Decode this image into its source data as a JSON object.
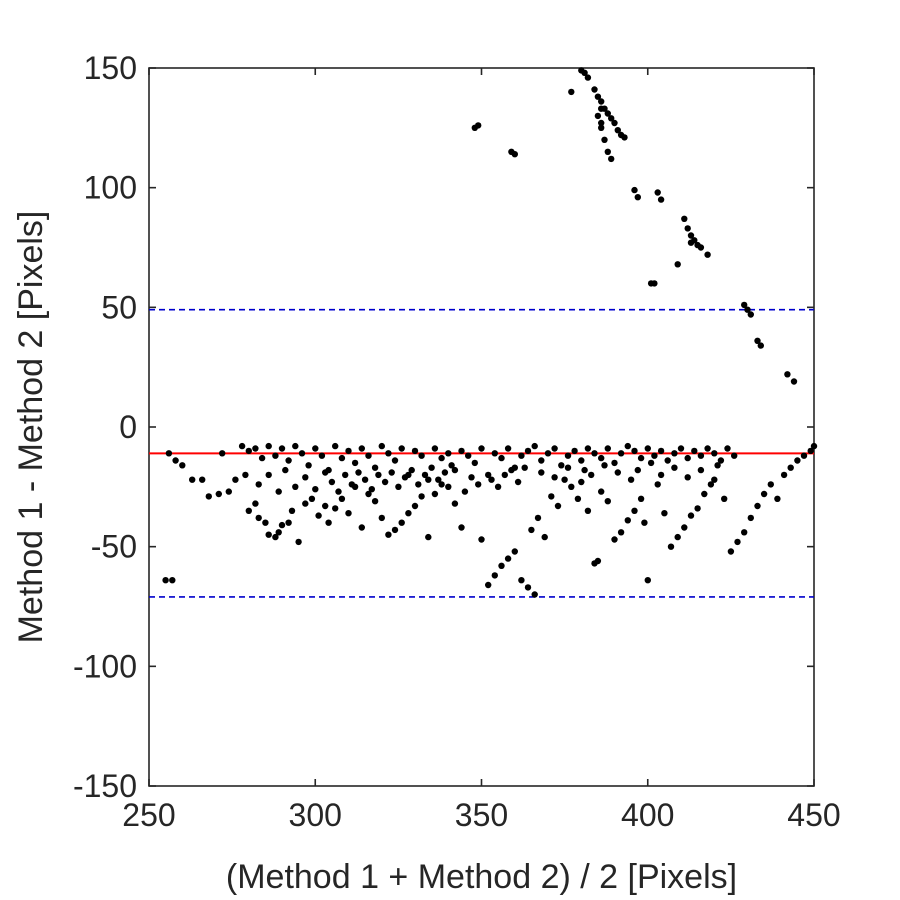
{
  "chart_data": {
    "type": "scatter",
    "title": "",
    "xlabel": "(Method 1 + Method 2) / 2 [Pixels]",
    "ylabel": "Method 1 - Method 2 [Pixels]",
    "xlim": [
      250,
      450
    ],
    "ylim": [
      -150,
      150
    ],
    "xticks": [
      250,
      300,
      350,
      400,
      450
    ],
    "yticks": [
      -150,
      -100,
      -50,
      0,
      50,
      100,
      150
    ],
    "xtick_labels": [
      "250",
      "300",
      "350",
      "400",
      "450"
    ],
    "ytick_labels": [
      "-150",
      "-100",
      "-50",
      "0",
      "50",
      "100",
      "150"
    ],
    "grid": false,
    "legend": "none",
    "reference_lines": [
      {
        "kind": "mean",
        "y": -11,
        "color": "#ff0000",
        "style": "solid"
      },
      {
        "kind": "upper-limit",
        "y": 49,
        "color": "#0000cc",
        "style": "dashed"
      },
      {
        "kind": "lower-limit",
        "y": -71,
        "color": "#0000cc",
        "style": "dashed"
      }
    ],
    "series": [
      {
        "color": "#000000",
        "points": [
          [
            255,
            -64
          ],
          [
            257,
            -64
          ],
          [
            256,
            -11
          ],
          [
            258,
            -14
          ],
          [
            260,
            -16
          ],
          [
            263,
            -22
          ],
          [
            266,
            -22
          ],
          [
            268,
            -29
          ],
          [
            271,
            -28
          ],
          [
            274,
            -27
          ],
          [
            272,
            -11
          ],
          [
            276,
            -22
          ],
          [
            279,
            -20
          ],
          [
            280,
            -35
          ],
          [
            282,
            -32
          ],
          [
            283,
            -38
          ],
          [
            285,
            -40
          ],
          [
            286,
            -45
          ],
          [
            288,
            -46
          ],
          [
            289,
            -44
          ],
          [
            290,
            -41
          ],
          [
            292,
            -40
          ],
          [
            293,
            -35
          ],
          [
            295,
            -48
          ],
          [
            297,
            -32
          ],
          [
            299,
            -30
          ],
          [
            301,
            -37
          ],
          [
            303,
            -33
          ],
          [
            304,
            -40
          ],
          [
            306,
            -34
          ],
          [
            308,
            -30
          ],
          [
            310,
            -36
          ],
          [
            312,
            -25
          ],
          [
            314,
            -42
          ],
          [
            316,
            -28
          ],
          [
            318,
            -31
          ],
          [
            320,
            -38
          ],
          [
            322,
            -45
          ],
          [
            324,
            -43
          ],
          [
            326,
            -40
          ],
          [
            328,
            -36
          ],
          [
            330,
            -33
          ],
          [
            332,
            -29
          ],
          [
            334,
            -46
          ],
          [
            336,
            -28
          ],
          [
            338,
            -24
          ],
          [
            340,
            -25
          ],
          [
            342,
            -32
          ],
          [
            344,
            -42
          ],
          [
            345,
            -27
          ],
          [
            347,
            -21
          ],
          [
            349,
            -24
          ],
          [
            350,
            -47
          ],
          [
            352,
            -66
          ],
          [
            354,
            -62
          ],
          [
            356,
            -58
          ],
          [
            358,
            -55
          ],
          [
            360,
            -52
          ],
          [
            362,
            -64
          ],
          [
            364,
            -67
          ],
          [
            366,
            -70
          ],
          [
            365,
            -43
          ],
          [
            367,
            -38
          ],
          [
            369,
            -46
          ],
          [
            371,
            -29
          ],
          [
            373,
            -33
          ],
          [
            375,
            -22
          ],
          [
            377,
            -25
          ],
          [
            379,
            -30
          ],
          [
            381,
            -18
          ],
          [
            382,
            -35
          ],
          [
            384,
            -57
          ],
          [
            385,
            -56
          ],
          [
            386,
            -27
          ],
          [
            388,
            -31
          ],
          [
            390,
            -47
          ],
          [
            392,
            -44
          ],
          [
            394,
            -39
          ],
          [
            396,
            -35
          ],
          [
            398,
            -30
          ],
          [
            399,
            -40
          ],
          [
            400,
            -64
          ],
          [
            403,
            -24
          ],
          [
            405,
            -36
          ],
          [
            407,
            -50
          ],
          [
            409,
            -46
          ],
          [
            411,
            -42
          ],
          [
            413,
            -37
          ],
          [
            415,
            -34
          ],
          [
            417,
            -28
          ],
          [
            420,
            -22
          ],
          [
            423,
            -30
          ],
          [
            425,
            -52
          ],
          [
            427,
            -48
          ],
          [
            429,
            -44
          ],
          [
            431,
            -38
          ],
          [
            433,
            -33
          ],
          [
            435,
            -28
          ],
          [
            437,
            -24
          ],
          [
            439,
            -30
          ],
          [
            441,
            -20
          ],
          [
            443,
            -17
          ],
          [
            445,
            -14
          ],
          [
            447,
            -12
          ],
          [
            449,
            -10
          ],
          [
            450,
            -8
          ],
          [
            278,
            -8
          ],
          [
            280,
            -10
          ],
          [
            282,
            -9
          ],
          [
            284,
            -13
          ],
          [
            286,
            -8
          ],
          [
            288,
            -12
          ],
          [
            290,
            -9
          ],
          [
            292,
            -14
          ],
          [
            294,
            -8
          ],
          [
            296,
            -11
          ],
          [
            298,
            -16
          ],
          [
            300,
            -9
          ],
          [
            302,
            -12
          ],
          [
            304,
            -18
          ],
          [
            306,
            -8
          ],
          [
            308,
            -13
          ],
          [
            310,
            -10
          ],
          [
            312,
            -15
          ],
          [
            314,
            -9
          ],
          [
            316,
            -12
          ],
          [
            318,
            -17
          ],
          [
            320,
            -8
          ],
          [
            322,
            -11
          ],
          [
            324,
            -14
          ],
          [
            326,
            -9
          ],
          [
            328,
            -20
          ],
          [
            330,
            -10
          ],
          [
            332,
            -12
          ],
          [
            334,
            -22
          ],
          [
            336,
            -9
          ],
          [
            338,
            -13
          ],
          [
            340,
            -11
          ],
          [
            342,
            -18
          ],
          [
            344,
            -10
          ],
          [
            346,
            -12
          ],
          [
            348,
            -15
          ],
          [
            350,
            -9
          ],
          [
            352,
            -20
          ],
          [
            354,
            -11
          ],
          [
            356,
            -13
          ],
          [
            358,
            -9
          ],
          [
            360,
            -17
          ],
          [
            362,
            -12
          ],
          [
            364,
            -10
          ],
          [
            366,
            -8
          ],
          [
            368,
            -14
          ],
          [
            370,
            -11
          ],
          [
            372,
            -9
          ],
          [
            374,
            -16
          ],
          [
            376,
            -12
          ],
          [
            378,
            -10
          ],
          [
            380,
            -14
          ],
          [
            382,
            -9
          ],
          [
            384,
            -11
          ],
          [
            386,
            -13
          ],
          [
            388,
            -9
          ],
          [
            390,
            -15
          ],
          [
            392,
            -11
          ],
          [
            394,
            -8
          ],
          [
            396,
            -10
          ],
          [
            398,
            -13
          ],
          [
            400,
            -9
          ],
          [
            402,
            -12
          ],
          [
            404,
            -10
          ],
          [
            406,
            -14
          ],
          [
            408,
            -11
          ],
          [
            410,
            -9
          ],
          [
            412,
            -13
          ],
          [
            414,
            -10
          ],
          [
            416,
            -12
          ],
          [
            418,
            -9
          ],
          [
            420,
            -11
          ],
          [
            422,
            -14
          ],
          [
            424,
            -9
          ],
          [
            426,
            -12
          ],
          [
            283,
            -24
          ],
          [
            286,
            -20
          ],
          [
            289,
            -27
          ],
          [
            291,
            -18
          ],
          [
            294,
            -25
          ],
          [
            297,
            -21
          ],
          [
            300,
            -26
          ],
          [
            303,
            -19
          ],
          [
            305,
            -23
          ],
          [
            307,
            -27
          ],
          [
            309,
            -20
          ],
          [
            311,
            -24
          ],
          [
            313,
            -19
          ],
          [
            315,
            -22
          ],
          [
            317,
            -26
          ],
          [
            319,
            -20
          ],
          [
            321,
            -23
          ],
          [
            323,
            -19
          ],
          [
            325,
            -25
          ],
          [
            327,
            -21
          ],
          [
            329,
            -18
          ],
          [
            331,
            -24
          ],
          [
            333,
            -20
          ],
          [
            335,
            -17
          ],
          [
            337,
            -22
          ],
          [
            339,
            -19
          ],
          [
            341,
            -16
          ],
          [
            353,
            -22
          ],
          [
            355,
            -25
          ],
          [
            357,
            -20
          ],
          [
            359,
            -18
          ],
          [
            361,
            -23
          ],
          [
            363,
            -17
          ],
          [
            368,
            -19
          ],
          [
            372,
            -21
          ],
          [
            376,
            -17
          ],
          [
            380,
            -23
          ],
          [
            383,
            -20
          ],
          [
            387,
            -16
          ],
          [
            391,
            -19
          ],
          [
            395,
            -22
          ],
          [
            397,
            -18
          ],
          [
            401,
            -15
          ],
          [
            404,
            -20
          ],
          [
            408,
            -17
          ],
          [
            412,
            -21
          ],
          [
            416,
            -18
          ],
          [
            419,
            -24
          ],
          [
            421,
            -16
          ],
          [
            348,
            125
          ],
          [
            349,
            126
          ],
          [
            359,
            115
          ],
          [
            360,
            114
          ],
          [
            377,
            140
          ],
          [
            380,
            149
          ],
          [
            381,
            148
          ],
          [
            382,
            146
          ],
          [
            384,
            141
          ],
          [
            385,
            138
          ],
          [
            386,
            136
          ],
          [
            386,
            133
          ],
          [
            387,
            133
          ],
          [
            388,
            131
          ],
          [
            389,
            129
          ],
          [
            390,
            127
          ],
          [
            391,
            124
          ],
          [
            392,
            122
          ],
          [
            393,
            121
          ],
          [
            385,
            130
          ],
          [
            386,
            127
          ],
          [
            386,
            125
          ],
          [
            387,
            120
          ],
          [
            388,
            115
          ],
          [
            389,
            112
          ],
          [
            396,
            99
          ],
          [
            397,
            96
          ],
          [
            403,
            98
          ],
          [
            404,
            95
          ],
          [
            401,
            60
          ],
          [
            402,
            60
          ],
          [
            409,
            68
          ],
          [
            411,
            87
          ],
          [
            412,
            83
          ],
          [
            413,
            80
          ],
          [
            413,
            77
          ],
          [
            414,
            78
          ],
          [
            415,
            76
          ],
          [
            416,
            75
          ],
          [
            418,
            72
          ],
          [
            429,
            51
          ],
          [
            430,
            49
          ],
          [
            431,
            47
          ],
          [
            433,
            36
          ],
          [
            434,
            34
          ],
          [
            442,
            22
          ],
          [
            444,
            19
          ]
        ]
      }
    ]
  }
}
